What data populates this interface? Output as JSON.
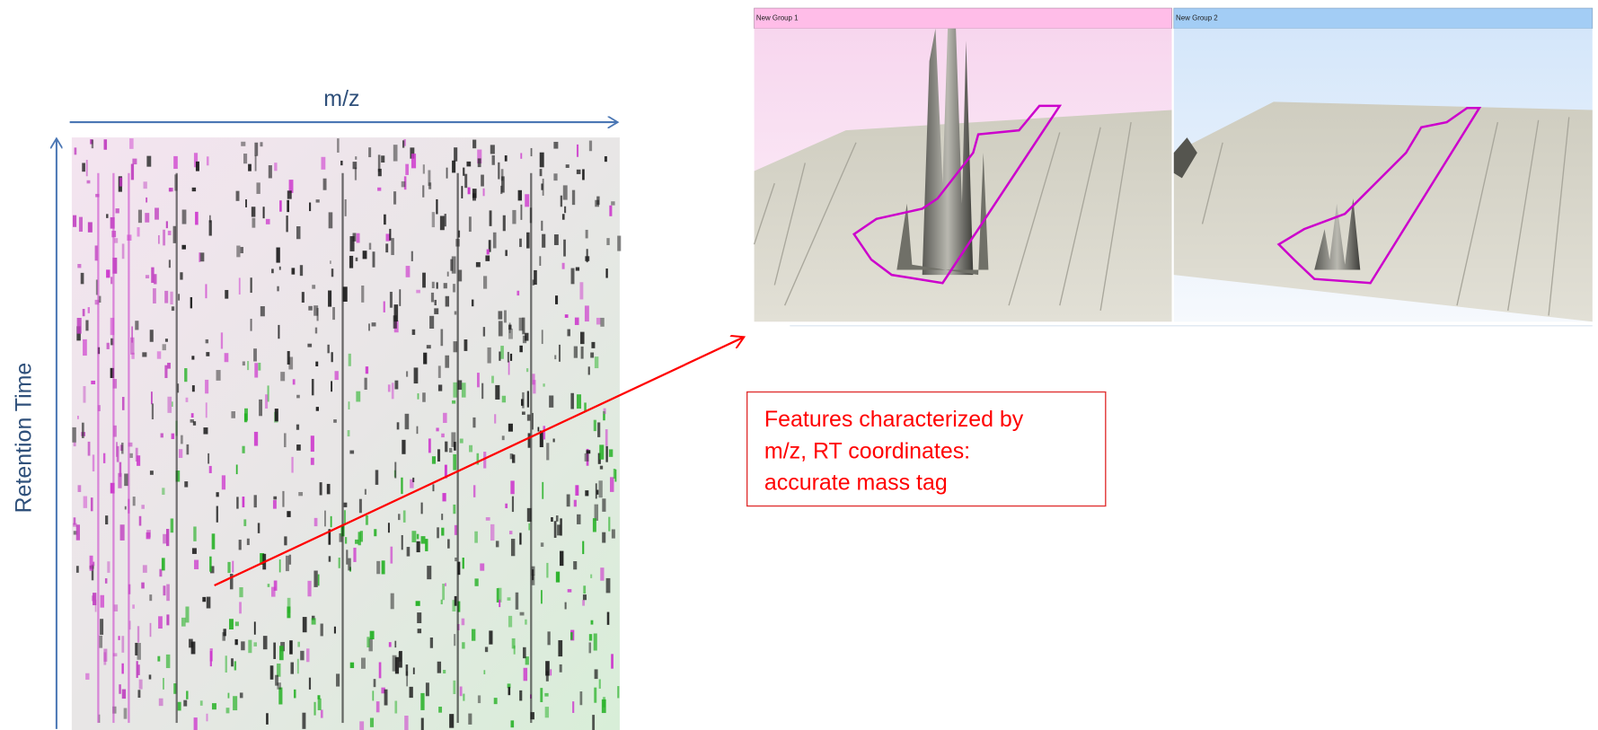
{
  "axes": {
    "x_label": "m/z",
    "y_label": "Retention Time"
  },
  "panels": [
    {
      "title": "New Group 1"
    },
    {
      "title": "New Group 2"
    }
  ],
  "callout": {
    "lines": [
      "Features characterized by",
      "m/z, RT coordinates:",
      "accurate mass tag"
    ]
  }
}
